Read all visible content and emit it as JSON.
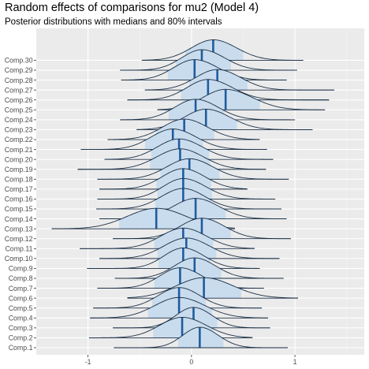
{
  "chart_data": {
    "type": "ridgeline",
    "title": "Random effects of comparisons for mu2 (Model 4)",
    "subtitle": "Posterior distributions with medians and 80% intervals",
    "xlabel": "",
    "ylabel": "",
    "xlim": [
      -1.5,
      1.67
    ],
    "x_ticks": [
      -1,
      0,
      1
    ],
    "x_tick_labels": [
      "-1",
      "0",
      "1"
    ],
    "grid": true,
    "legend": "none",
    "colors": {
      "panel": "#ebebeb",
      "grid_major": "#ffffff",
      "grid_minor": "#f4f4f4",
      "fill": "#c9dcee",
      "outline": "#1a2f45",
      "median": "#1f5c9e",
      "text": "#4d4d4d"
    },
    "categories": [
      "Comp.1",
      "Comp.2",
      "Comp.3",
      "Comp.4",
      "Comp.5",
      "Comp.6",
      "Comp.7",
      "Comp.8",
      "Comp.9",
      "Comp.10",
      "Comp.11",
      "Comp.12",
      "Comp.13",
      "Comp.14",
      "Comp.15",
      "Comp.16",
      "Comp.17",
      "Comp.18",
      "Comp.19",
      "Comp.20",
      "Comp.21",
      "Comp.22",
      "Comp.23",
      "Comp.24",
      "Comp.25",
      "Comp.26",
      "Comp.27",
      "Comp.28",
      "Comp.29",
      "Comp.30"
    ],
    "series": [
      {
        "label": "Comp.1",
        "median": 0.08,
        "interval80": [
          -0.13,
          0.31
        ],
        "range": [
          -0.75,
          0.93
        ]
      },
      {
        "label": "Comp.2",
        "median": -0.09,
        "interval80": [
          -0.37,
          0.21
        ],
        "range": [
          -0.99,
          0.59
        ]
      },
      {
        "label": "Comp.3",
        "median": 0.02,
        "interval80": [
          -0.2,
          0.25
        ],
        "range": [
          -0.76,
          0.76
        ]
      },
      {
        "label": "Comp.4",
        "median": -0.12,
        "interval80": [
          -0.42,
          0.2
        ],
        "range": [
          -0.98,
          0.74
        ]
      },
      {
        "label": "Comp.5",
        "median": -0.12,
        "interval80": [
          -0.38,
          0.14
        ],
        "range": [
          -0.95,
          0.68
        ]
      },
      {
        "label": "Comp.6",
        "median": 0.12,
        "interval80": [
          -0.22,
          0.48
        ],
        "range": [
          -0.62,
          1.03
        ]
      },
      {
        "label": "Comp.7",
        "median": -0.11,
        "interval80": [
          -0.36,
          0.16
        ],
        "range": [
          -0.91,
          0.7
        ]
      },
      {
        "label": "Comp.8",
        "median": 0.03,
        "interval80": [
          -0.22,
          0.29
        ],
        "range": [
          -0.74,
          0.89
        ]
      },
      {
        "label": "Comp.9",
        "median": -0.08,
        "interval80": [
          -0.32,
          0.18
        ],
        "range": [
          -1.01,
          0.66
        ]
      },
      {
        "label": "Comp.10",
        "median": -0.05,
        "interval80": [
          -0.33,
          0.24
        ],
        "range": [
          -0.89,
          0.85
        ]
      },
      {
        "label": "Comp.11",
        "median": -0.08,
        "interval80": [
          -0.36,
          0.21
        ],
        "range": [
          -1.08,
          0.61
        ]
      },
      {
        "label": "Comp.12",
        "median": 0.1,
        "interval80": [
          -0.17,
          0.38
        ],
        "range": [
          -0.76,
          0.96
        ]
      },
      {
        "label": "Comp.13",
        "median": -0.34,
        "interval80": [
          -0.7,
          0.03
        ],
        "range": [
          -1.35,
          0.42
        ]
      },
      {
        "label": "Comp.14",
        "median": 0.04,
        "interval80": [
          -0.24,
          0.33
        ],
        "range": [
          -0.89,
          0.92
        ]
      },
      {
        "label": "Comp.15",
        "median": -0.08,
        "interval80": [
          -0.35,
          0.19
        ],
        "range": [
          -0.92,
          0.87
        ]
      },
      {
        "label": "Comp.16",
        "median": -0.08,
        "interval80": [
          -0.33,
          0.2
        ],
        "range": [
          -0.91,
          0.81
        ]
      },
      {
        "label": "Comp.17",
        "median": -0.08,
        "interval80": [
          -0.34,
          0.19
        ],
        "range": [
          -0.89,
          0.54
        ]
      },
      {
        "label": "Comp.18",
        "median": -0.02,
        "interval80": [
          -0.3,
          0.27
        ],
        "range": [
          -0.91,
          0.94
        ]
      },
      {
        "label": "Comp.19",
        "median": -0.11,
        "interval80": [
          -0.4,
          0.18
        ],
        "range": [
          -1.1,
          0.72
        ]
      },
      {
        "label": "Comp.20",
        "median": -0.12,
        "interval80": [
          -0.39,
          0.17
        ],
        "range": [
          -0.84,
          0.79
        ]
      },
      {
        "label": "Comp.21",
        "median": -0.18,
        "interval80": [
          -0.45,
          0.11
        ],
        "range": [
          -1.07,
          0.73
        ]
      },
      {
        "label": "Comp.22",
        "median": -0.07,
        "interval80": [
          -0.34,
          0.22
        ],
        "range": [
          -0.81,
          0.66
        ]
      },
      {
        "label": "Comp.23",
        "median": 0.14,
        "interval80": [
          -0.13,
          0.44
        ],
        "range": [
          -0.53,
          1.17
        ]
      },
      {
        "label": "Comp.24",
        "median": 0.04,
        "interval80": [
          -0.22,
          0.32
        ],
        "range": [
          -0.69,
          1.0
        ]
      },
      {
        "label": "Comp.25",
        "median": 0.33,
        "interval80": [
          0.05,
          0.66
        ],
        "range": [
          -0.33,
          1.29
        ]
      },
      {
        "label": "Comp.26",
        "median": 0.16,
        "interval80": [
          -0.1,
          0.46
        ],
        "range": [
          -0.62,
          1.33
        ]
      },
      {
        "label": "Comp.27",
        "median": 0.25,
        "interval80": [
          -0.02,
          0.54
        ],
        "range": [
          -0.45,
          1.38
        ]
      },
      {
        "label": "Comp.28",
        "median": 0.03,
        "interval80": [
          -0.23,
          0.32
        ],
        "range": [
          -0.68,
          0.92
        ]
      },
      {
        "label": "Comp.29",
        "median": 0.1,
        "interval80": [
          -0.15,
          0.38
        ],
        "range": [
          -0.69,
          1.02
        ]
      },
      {
        "label": "Comp.30",
        "median": 0.21,
        "interval80": [
          -0.06,
          0.5
        ],
        "range": [
          -0.48,
          1.08
        ]
      }
    ]
  }
}
